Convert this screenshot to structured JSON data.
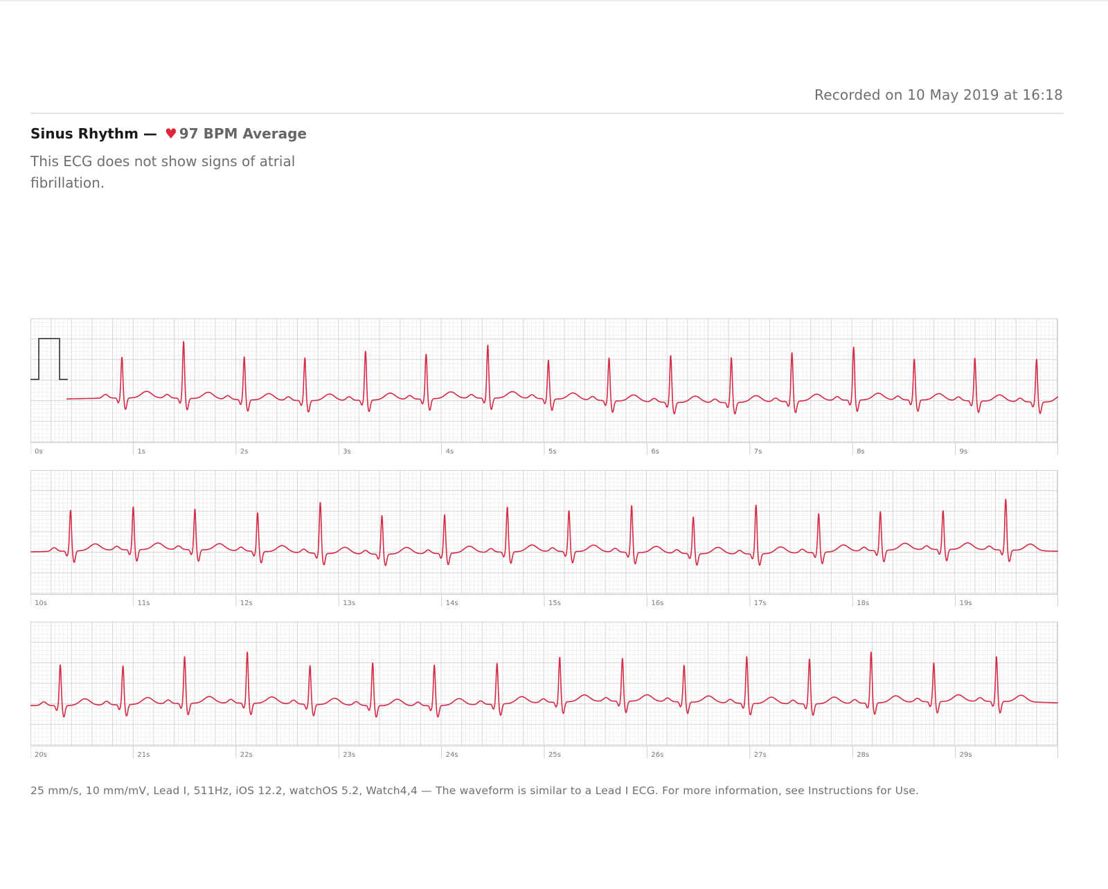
{
  "header": {
    "recorded": "Recorded on 10 May 2019 at 16:18"
  },
  "summary": {
    "classification": "Sinus Rhythm —",
    "heart_icon": "heart-icon",
    "average_bpm": "97 BPM Average",
    "description": "This ECG does not show signs of atrial fibrillation."
  },
  "footer": {
    "text": "25 mm/s, 10 mm/mV, Lead I, 511Hz, iOS 12.2, watchOS 5.2, Watch4,4 — The waveform is similar to a Lead I ECG. For more information, see Instructions for Use."
  },
  "colors": {
    "trace": "#d42a44",
    "grid_minor": "#ebebeb",
    "grid_major": "#d3d3d3",
    "accent_heart": "#e0243b"
  },
  "chart_data": {
    "type": "line",
    "units": {
      "x": "s",
      "y": "mV"
    },
    "paper_speed_mm_per_s": 25,
    "gain_mm_per_mV": 10,
    "sample_rate_hz": 511,
    "average_bpm": 97,
    "calibration_pulse_mV": 1,
    "strips": [
      {
        "x_range": [
          0,
          10
        ],
        "tick_labels": [
          "0s",
          "1s",
          "2s",
          "3s",
          "4s",
          "5s",
          "6s",
          "7s",
          "8s",
          "9s"
        ],
        "r_peaks_s": [
          0.89,
          1.49,
          2.08,
          2.67,
          3.26,
          3.85,
          4.45,
          5.04,
          5.63,
          6.23,
          6.82,
          7.41,
          8.01,
          8.6,
          9.19,
          9.79
        ],
        "r_amplitude_mV": [
          1.0,
          1.4,
          1.05,
          1.05,
          1.2,
          1.1,
          1.3,
          0.95,
          1.05,
          1.15,
          1.1,
          1.2,
          1.3,
          1.0,
          1.05,
          1.05
        ]
      },
      {
        "x_range": [
          10,
          20
        ],
        "tick_labels": [
          "10s",
          "11s",
          "12s",
          "13s",
          "14s",
          "15s",
          "16s",
          "17s",
          "18s",
          "19s"
        ],
        "r_peaks_s": [
          10.39,
          11.0,
          11.6,
          12.21,
          12.82,
          13.42,
          14.03,
          14.64,
          15.24,
          15.85,
          16.45,
          17.06,
          17.67,
          18.27,
          18.88,
          19.49
        ],
        "r_amplitude_mV": [
          1.0,
          1.05,
          1.0,
          0.95,
          1.25,
          0.95,
          0.95,
          1.1,
          1.0,
          1.15,
          0.9,
          1.2,
          0.95,
          0.95,
          0.95,
          1.25
        ]
      },
      {
        "x_range": [
          20,
          30
        ],
        "tick_labels": [
          "20s",
          "21s",
          "22s",
          "23s",
          "24s",
          "25s",
          "26s",
          "27s",
          "28s",
          "29s"
        ],
        "r_peaks_s": [
          20.29,
          20.9,
          21.5,
          22.11,
          22.72,
          23.33,
          23.93,
          24.54,
          25.15,
          25.76,
          26.36,
          26.97,
          27.58,
          28.18,
          28.79,
          29.4
        ],
        "r_amplitude_mV": [
          1.0,
          0.95,
          1.15,
          1.25,
          0.95,
          1.05,
          1.0,
          1.0,
          1.1,
          1.05,
          0.9,
          1.15,
          1.1,
          1.25,
          0.95,
          1.1
        ]
      }
    ]
  }
}
